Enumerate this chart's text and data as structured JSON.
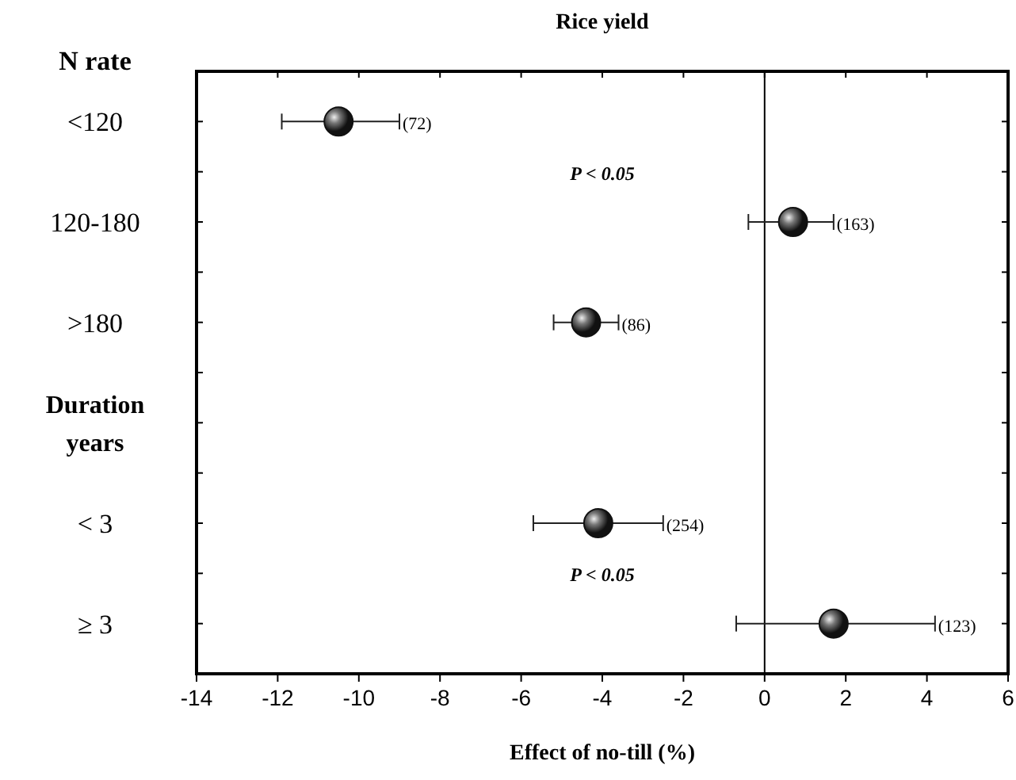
{
  "chart_data": {
    "type": "scatter",
    "orientation": "horizontal",
    "title": "Rice yield",
    "xlabel": "Effect of no-till (%)",
    "categories": [
      "<120",
      "120-180",
      ">180",
      "Duration years",
      "< 3",
      "≥ 3"
    ],
    "values": [
      -10.5,
      0.7,
      -4.4,
      null,
      -4.1,
      1.7
    ],
    "errors": [
      [
        -11.9,
        -9.0
      ],
      [
        -0.4,
        1.7
      ],
      [
        -5.2,
        -3.6
      ],
      null,
      [
        -5.7,
        -2.5
      ],
      [
        -0.7,
        4.2
      ]
    ],
    "color": "#111111",
    "marker": "circle",
    "xlim": [
      -14,
      6
    ],
    "xticks": [
      -14,
      -12,
      -10,
      -8,
      -6,
      -4,
      -2,
      0,
      2,
      4,
      6
    ],
    "ref_lines": [
      {
        "axis": "x",
        "value": 0,
        "color": "#000000"
      }
    ],
    "annotations": [
      "N rate",
      "P < 0.05",
      "P < 0.05",
      {
        "text": "(72)",
        "x": -9.0,
        "y": "<120"
      },
      {
        "text": "(163)",
        "x": 1.7,
        "y": "120-180"
      },
      {
        "text": "(86)",
        "x": -3.6,
        "y": ">180"
      },
      {
        "text": "(254)",
        "x": -2.5,
        "y": "< 3"
      },
      {
        "text": "(123)",
        "x": 4.2,
        "y": "≥ 3"
      }
    ],
    "grid": false
  }
}
